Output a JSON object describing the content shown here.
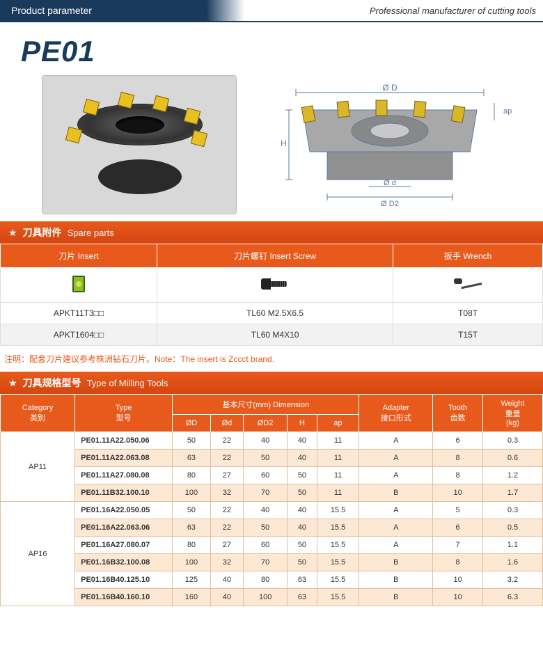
{
  "header": {
    "left": "Product parameter",
    "right": "Professional manufacturer of cutting tools"
  },
  "title": "PE01",
  "diagram": {
    "labels": {
      "D": "Ø D",
      "d": "Ø d",
      "D2": "Ø D2",
      "H": "H",
      "ap": "ap"
    }
  },
  "spare_section": {
    "star": "★",
    "title_cn": "刀具附件",
    "title_en": "Spare parts",
    "headers": [
      {
        "cn": "刀片",
        "en": "Insert"
      },
      {
        "cn": "刀片螺钉",
        "en": "Insert Screw"
      },
      {
        "cn": "扳手",
        "en": "Wrench"
      }
    ],
    "rows": [
      [
        "APKT11T3□□",
        "TL60 M2.5X6.5",
        "T08T"
      ],
      [
        "APKT1604□□",
        "TL60 M4X10",
        "T15T"
      ]
    ]
  },
  "note": "注明：配套刀片建议参考株洲钻石刀片。Note：The insert is Zccct brand.",
  "milling_section": {
    "star": "★",
    "title_cn": "刀具规格型号",
    "title_en": "Type of Milling Tools",
    "headers": {
      "category": {
        "en": "Category",
        "cn": "类别"
      },
      "type": {
        "en": "Type",
        "cn": "型号"
      },
      "dimension": {
        "cn": "基本尺寸(mm)",
        "en": "Dimension"
      },
      "dim_sub": [
        "ØD",
        "Ød",
        "ØD2",
        "H",
        "ap"
      ],
      "adapter": {
        "en": "Adapter",
        "cn": "接口形式"
      },
      "tooth": {
        "en": "Tooth",
        "cn": "齿数"
      },
      "weight": {
        "en": "Weight",
        "cn": "重量",
        "unit": "(kg)"
      }
    },
    "groups": [
      {
        "category": "AP11",
        "rows": [
          {
            "type": "PE01.11A22.050.06",
            "D": "50",
            "d": "22",
            "D2": "40",
            "H": "40",
            "ap": "11",
            "adapter": "A",
            "tooth": "6",
            "weight": "0.3"
          },
          {
            "type": "PE01.11A22.063.08",
            "D": "63",
            "d": "22",
            "D2": "50",
            "H": "40",
            "ap": "11",
            "adapter": "A",
            "tooth": "8",
            "weight": "0.6"
          },
          {
            "type": "PE01.11A27.080.08",
            "D": "80",
            "d": "27",
            "D2": "60",
            "H": "50",
            "ap": "11",
            "adapter": "A",
            "tooth": "8",
            "weight": "1.2"
          },
          {
            "type": "PE01.11B32.100.10",
            "D": "100",
            "d": "32",
            "D2": "70",
            "H": "50",
            "ap": "11",
            "adapter": "B",
            "tooth": "10",
            "weight": "1.7"
          }
        ]
      },
      {
        "category": "AP16",
        "rows": [
          {
            "type": "PE01.16A22.050.05",
            "D": "50",
            "d": "22",
            "D2": "40",
            "H": "40",
            "ap": "15.5",
            "adapter": "A",
            "tooth": "5",
            "weight": "0.3"
          },
          {
            "type": "PE01.16A22.063.06",
            "D": "63",
            "d": "22",
            "D2": "50",
            "H": "40",
            "ap": "15.5",
            "adapter": "A",
            "tooth": "6",
            "weight": "0.5"
          },
          {
            "type": "PE01.16A27.080.07",
            "D": "80",
            "d": "27",
            "D2": "60",
            "H": "50",
            "ap": "15.5",
            "adapter": "A",
            "tooth": "7",
            "weight": "1.1"
          },
          {
            "type": "PE01.16B32.100.08",
            "D": "100",
            "d": "32",
            "D2": "70",
            "H": "50",
            "ap": "15.5",
            "adapter": "B",
            "tooth": "8",
            "weight": "1.6"
          },
          {
            "type": "PE01.16B40.125.10",
            "D": "125",
            "d": "40",
            "D2": "80",
            "H": "63",
            "ap": "15.5",
            "adapter": "B",
            "tooth": "10",
            "weight": "3.2"
          },
          {
            "type": "PE01.16B40.160.10",
            "D": "160",
            "d": "40",
            "D2": "100",
            "H": "63",
            "ap": "15.5",
            "adapter": "B",
            "tooth": "10",
            "weight": "6.3"
          }
        ]
      }
    ]
  },
  "colors": {
    "navy": "#1a3a5c",
    "orange": "#e85a1c",
    "row_odd": "#fde8d4",
    "row_even": "#ffffff",
    "border": "#e0c0a0"
  }
}
